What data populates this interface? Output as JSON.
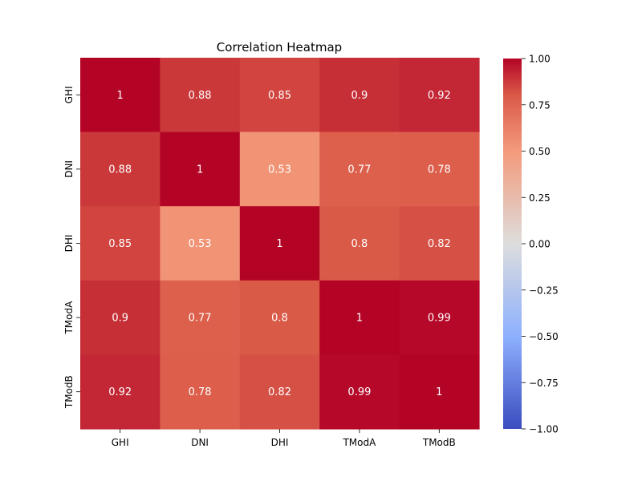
{
  "chart_data": {
    "type": "heatmap",
    "title": "Correlation Heatmap",
    "xlabel": "",
    "ylabel": "",
    "x_categories": [
      "GHI",
      "DNI",
      "DHI",
      "TModA",
      "TModB"
    ],
    "y_categories": [
      "GHI",
      "DNI",
      "DHI",
      "TModA",
      "TModB"
    ],
    "values": [
      [
        1,
        0.88,
        0.85,
        0.9,
        0.92
      ],
      [
        0.88,
        1,
        0.53,
        0.77,
        0.78
      ],
      [
        0.85,
        0.53,
        1,
        0.8,
        0.82
      ],
      [
        0.9,
        0.77,
        0.8,
        1,
        0.99
      ],
      [
        0.92,
        0.78,
        0.82,
        0.99,
        1
      ]
    ],
    "annotations": true,
    "colormap": "coolwarm",
    "vmin": -1,
    "vmax": 1,
    "colorbar_ticks": [
      "1.00",
      "0.75",
      "0.50",
      "0.25",
      "0.00",
      "−0.25",
      "−0.50",
      "−0.75",
      "−1.00"
    ],
    "colorbar_tick_values": [
      1,
      0.75,
      0.5,
      0.25,
      0,
      -0.25,
      -0.5,
      -0.75,
      -1
    ],
    "grid": false
  }
}
